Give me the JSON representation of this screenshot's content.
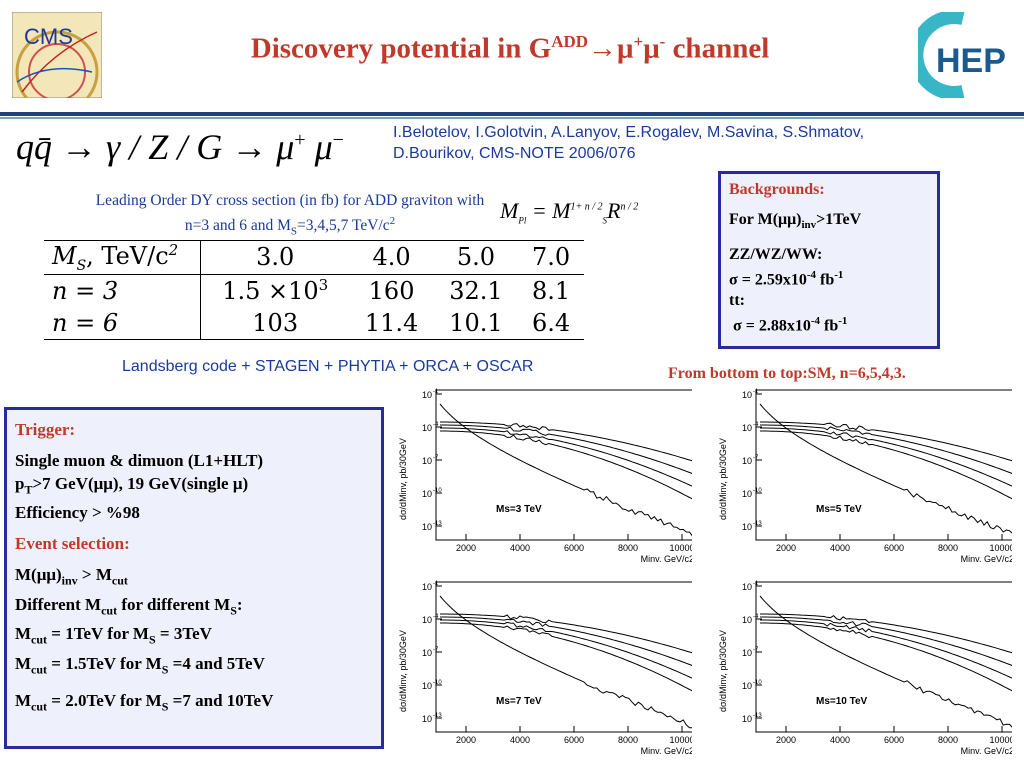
{
  "header": {
    "title_prefix": "Discovery potential in G",
    "title_sup_add": "ADD",
    "title_arrow_mu": "→μ",
    "title_sup_plus": "+",
    "title_mu": "μ",
    "title_sup_minus": "-",
    "title_suffix": " channel",
    "cms_logo_text": "CMS",
    "hep_logo_text": "HEP",
    "accent_color": "#c0392b",
    "rule_color": "#1f3f7f"
  },
  "formula": {
    "lhs": "qq̄ → γ / Z / G → μ",
    "plus": "+",
    "mu": " μ",
    "minus": "−"
  },
  "authors": {
    "line1": "I.Belotelov, I.Golotvin, A.Lanyov, E.Rogalev, M.Savina, S.Shmatov,",
    "line2": "D.Bourikov, CMS-NOTE 2006/076"
  },
  "table": {
    "caption_line1": "Leading Order DY cross section (in fb) for ADD graviton with",
    "caption_line2_a": "n=3 and 6 and M",
    "caption_line2_sub": "S",
    "caption_line2_b": "=3,4,5,7 TeV/c",
    "caption_line2_sup": "2",
    "mpl_formula": "M",
    "mpl_sub": "Pl",
    "mpl_eq": " = M",
    "mpl_sup": "1+ n / 2",
    "mpl_sub2": "S",
    "mpl_r": "R",
    "mpl_r_sup": "n / 2",
    "header": {
      "label": "M",
      "label_sub": "S",
      "label_rest": ", TeV/c",
      "label_sup": "2",
      "cols": [
        "3.0",
        "4.0",
        "5.0",
        "7.0"
      ]
    },
    "rows": [
      {
        "label": "n = 3",
        "v0_base": "1.5 ×10",
        "v0_sup": "3",
        "cells": [
          "160",
          "32.1",
          "8.1"
        ]
      },
      {
        "label": "n = 6",
        "v0_base": "103",
        "v0_sup": "",
        "cells": [
          "11.4",
          "10.1",
          "6.4"
        ]
      }
    ]
  },
  "software_line": "Landsberg code + STAGEN + PHYTIA + ORCA + OSCAR",
  "backgrounds": {
    "title": "Backgrounds:",
    "for_a": "For M(μμ)",
    "for_sub": "inv",
    "for_b": ">1TeV",
    "zz": "ZZ/WZ/WW:",
    "sigma1_a": "σ = 2.59x10",
    "sigma1_sup": "-4",
    "sigma1_b": " fb",
    "sigma1_sup2": "-1",
    "tt": "tt:",
    "sigma2_a": " σ = 2.88x10",
    "sigma2_sup": "-4",
    "sigma2_b": " fb",
    "sigma2_sup2": "-1"
  },
  "plots_caption": "From bottom to top:SM, n=6,5,4,3.",
  "trigger_box": {
    "trigger_title": "Trigger:",
    "line1": "Single muon & dimuon (L1+HLT)",
    "line2_a": "p",
    "line2_sub": "T",
    "line2_b": ">7 GeV(μμ), 19 GeV(single μ)",
    "line3": "Efficiency > %98",
    "event_title": "Event selection:",
    "l4_a": "M(μμ)",
    "l4_sub": "inv",
    "l4_b": " > M",
    "l4_sub2": "cut",
    "l5_a": "Different M",
    "l5_sub": "cut",
    "l5_b": " for different M",
    "l5_sub2": "S",
    "l5_c": ":",
    "l6_a": "M",
    "l6_sub": "cut",
    "l6_b": " = 1TeV for M",
    "l6_sub2": "S",
    "l6_c": " = 3TeV",
    "l7_a": "M",
    "l7_sub": "cut",
    "l7_b": " = 1.5TeV for M",
    "l7_sub2": "S",
    "l7_c": " =4 and 5TeV",
    "l8_a": "M",
    "l8_sub": "cut",
    "l8_b": " = 2.0TeV for M",
    "l8_sub2": "S",
    "l8_c": " =7 and 10TeV"
  },
  "plots": {
    "ylabel": "dσ/dM",
    "ylabel_sub": "inv",
    "ylabel_rest": ", pb/30GeV",
    "xlabel": "M",
    "xlabel_sub": "inv",
    "xlabel_rest": ", GeV/c",
    "xlabel_sup": "2",
    "xticks": [
      "2000",
      "4000",
      "6000",
      "8000",
      "10000"
    ],
    "yticks": [
      "10",
      "10",
      "10",
      "10",
      "10"
    ],
    "ytick_exps": [
      "-1",
      "-4",
      "-7",
      "-10",
      "-13"
    ],
    "panels": [
      {
        "label": "M",
        "label_sub": "s",
        "label_rest": "=3 TeV"
      },
      {
        "label": "M",
        "label_sub": "s",
        "label_rest": "=5 TeV"
      },
      {
        "label": "M",
        "label_sub": "s",
        "label_rest": "=7 TeV"
      },
      {
        "label": "M",
        "label_sub": "s",
        "label_rest": "=10 TeV"
      }
    ]
  }
}
